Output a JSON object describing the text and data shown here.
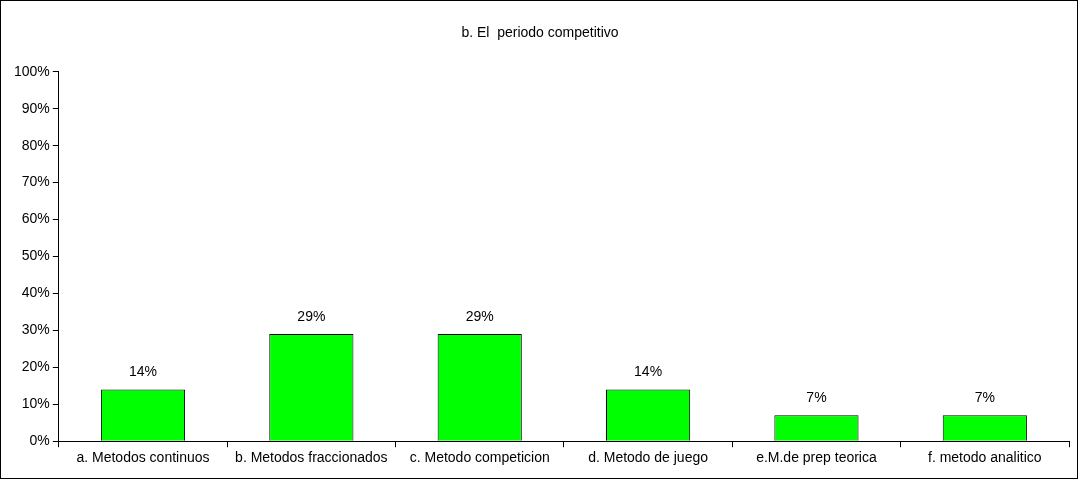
{
  "chart_data": {
    "type": "bar",
    "title": "b. El  periodo competitivo",
    "categories": [
      "a. Metodos continuos",
      "b. Metodos fraccionados",
      "c. Metodo competicion",
      "d. Metodo de juego",
      "e.M.de prep teorica",
      "f. metodo analitico"
    ],
    "values": [
      14,
      29,
      29,
      14,
      7,
      7
    ],
    "value_labels": [
      "14%",
      "29%",
      "29%",
      "14%",
      "7%",
      "7%"
    ],
    "color": "#00ff00",
    "ylim": [
      0,
      100
    ],
    "yticks": [
      {
        "value": 0,
        "label": "0%"
      },
      {
        "value": 10,
        "label": "10%"
      },
      {
        "value": 20,
        "label": "20%"
      },
      {
        "value": 30,
        "label": "30%"
      },
      {
        "value": 40,
        "label": "40%"
      },
      {
        "value": 50,
        "label": "50%"
      },
      {
        "value": 60,
        "label": "60%"
      },
      {
        "value": 70,
        "label": "70%"
      },
      {
        "value": 80,
        "label": "80%"
      },
      {
        "value": 90,
        "label": "90%"
      },
      {
        "value": 100,
        "label": "100%"
      }
    ],
    "grid": false,
    "legend": false
  }
}
